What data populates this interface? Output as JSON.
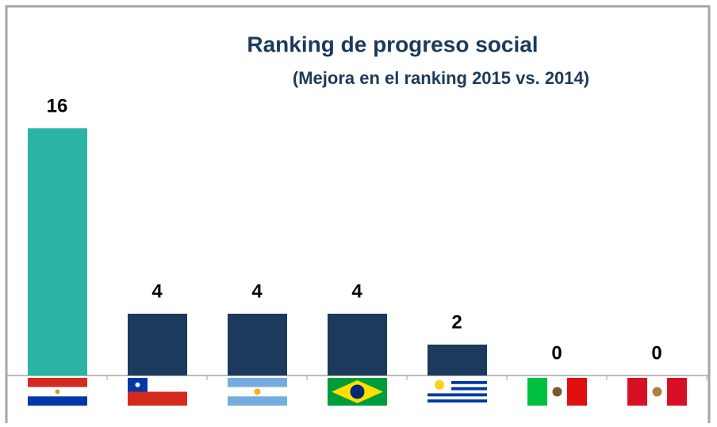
{
  "chart_data": {
    "type": "bar",
    "title": "Ranking de progreso social",
    "subtitle": "(Mejora en el ranking 2015 vs. 2014)",
    "categories": [
      null,
      null,
      null,
      null,
      null,
      null,
      null
    ],
    "values": [
      16,
      4,
      4,
      4,
      2,
      0,
      0
    ],
    "colors": [
      "#2bb3a5",
      "#1b3a5c",
      "#1b3a5c",
      "#1b3a5c",
      "#1b3a5c",
      "#1b3a5c",
      "#1b3a5c"
    ]
  }
}
